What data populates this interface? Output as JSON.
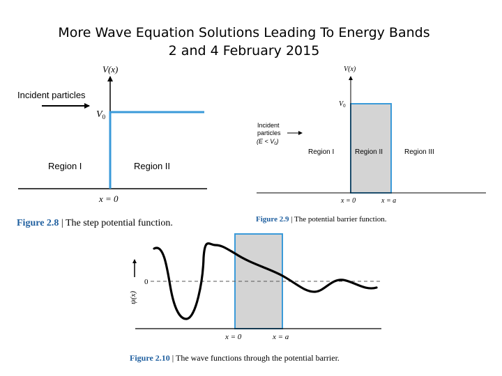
{
  "slide": {
    "title_line1": "More Wave Equation Solutions Leading To Energy Bands",
    "title_line2": "2 and 4 February 2015"
  },
  "fig28": {
    "ylabel": "V(x)",
    "incident": "Incident particles",
    "v0": "V",
    "v0_sub": "0",
    "region1": "Region I",
    "region2": "Region II",
    "xlabel": "x = 0",
    "caption_num": "Figure 2.8",
    "caption_sep": "|",
    "caption_text": "The step potential function."
  },
  "fig29": {
    "ylabel": "V(x)",
    "v0": "V",
    "v0_sub": "0",
    "incident_l1": "Incident",
    "incident_l2": "particles",
    "incident_l3": "(E < V",
    "incident_l3_sub": "0",
    "incident_l3_end": ")",
    "region1": "Region I",
    "region2": "Region II",
    "region3": "Region III",
    "x0": "x = 0",
    "xa": "x = a",
    "caption_num": "Figure 2.9",
    "caption_sep": "|",
    "caption_text": "The potential barrier function."
  },
  "fig210": {
    "zero": "0",
    "ylabel": "ψ(x)",
    "x0": "x = 0",
    "xa": "x = a",
    "caption_num": "Figure 2.10",
    "caption_sep": "|",
    "caption_text": "The wave functions through the potential barrier."
  },
  "colors": {
    "accent": "#3a9ad9",
    "caption_blue": "#1f5f9f",
    "barrier_fill": "#d4d4d4"
  }
}
